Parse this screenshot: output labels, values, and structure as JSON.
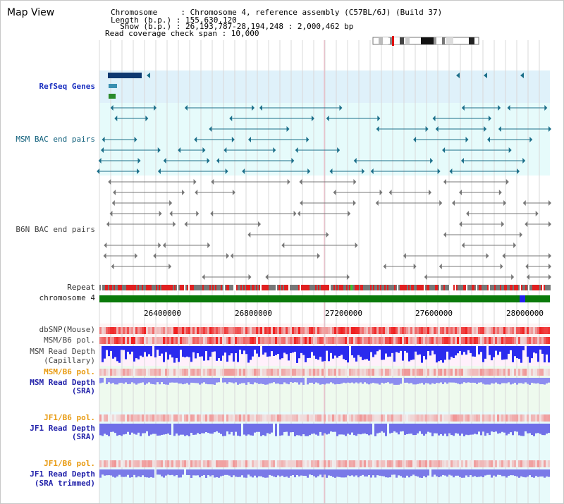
{
  "header": {
    "title": "Map View",
    "lines": [
      "Chromosome     : Chromosome 4, reference assembly (C57BL/6J) (Build 37)",
      "Length (b.p.) : 155,630,120",
      "  Show (b.p.) : 26,193,787-28,194,248 : 2,000,462 bp",
      "Read coverage check span : 10,000"
    ]
  },
  "tracks": {
    "refseq": "RefSeq Genes",
    "msm_bac": "MSM BAC end pairs",
    "b6n_bac": "B6N BAC end pairs",
    "repeat": "Repeat",
    "chromosome": "chromosome 4",
    "dbsnp": "dbSNP(Mouse)",
    "msm_b6_pol_1": "MSM/B6 pol.",
    "msm_read_depth_cap_1": "MSM Read Depth",
    "msm_read_depth_cap_2": "(Capillary)",
    "msm_b6_pol_2": "MSM/B6 pol.",
    "msm_read_depth_sra_1": "MSM Read Depth",
    "msm_read_depth_sra_2": "(SRA)",
    "jf1_b6_pol_1": "JF1/B6 pol.",
    "jf1_read_depth_sra_1": "JF1 Read Depth",
    "jf1_read_depth_sra_2": "(SRA)",
    "jf1_b6_pol_2": "JF1/B6 pol.",
    "jf1_read_depth_trim_1": "JF1 Read Depth",
    "jf1_read_depth_trim_2": "(SRA trimmed)"
  },
  "axis_ticks": [
    "26400000",
    "26800000",
    "27200000",
    "27600000",
    "28000000"
  ],
  "colors": {
    "refseq_bg": "#dff1fa",
    "msm_bac_bg": "#e6fbfb",
    "b6n_bac_bg": "#ffffff",
    "snp_bg": "#fff4f4",
    "cap_depth_bg": "#fff0fb",
    "sra_depth_bg": "#eefaee",
    "jf1_depth_bg": "#e8fbfb",
    "chromosome_bar": "#0a7a0a",
    "repeat_red": "#e02020",
    "repeat_gray": "#777777",
    "depth_blue": "#2a2aee",
    "depth_light_blue": "#8c8cf0",
    "teal": "#1c6f8a",
    "gene_dark": "#0c3870"
  }
}
